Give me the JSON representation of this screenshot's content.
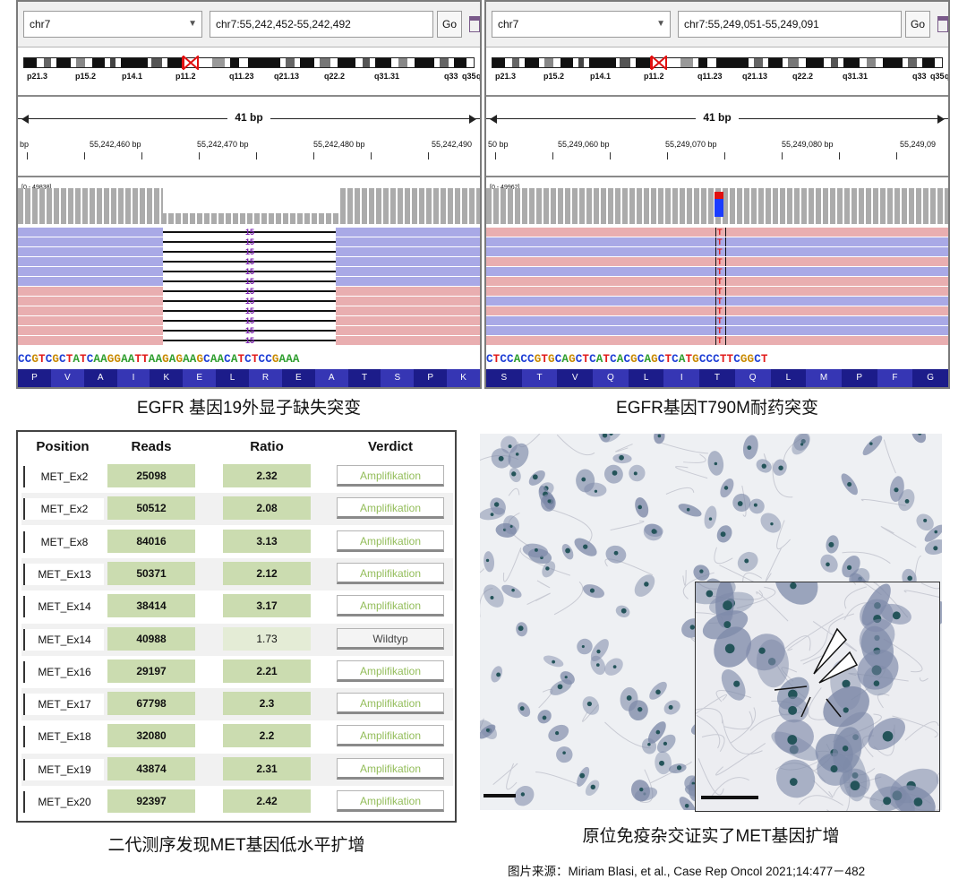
{
  "igv_left": {
    "chromosome": "chr7",
    "locus": "chr7:55,242,452-55,242,492",
    "go_label": "Go",
    "bands": [
      "p21.3",
      "p15.2",
      "p14.1",
      "p11.2",
      "q11.23",
      "q21.13",
      "q22.2",
      "q31.31",
      "q33",
      "q35",
      "q3"
    ],
    "width_label": "41 bp",
    "ticks": [
      "bp",
      "55,242,460 bp",
      "55,242,470 bp",
      "55,242,480 bp",
      "55,242,490"
    ],
    "coverage_range": "[0 - 49838]",
    "sequence": "CCGTCGCTATCAAGGAATTAAGAGAAGCAACATCTCCGAAA",
    "amino_acids": [
      "P",
      "V",
      "A",
      "I",
      "K",
      "E",
      "L",
      "R",
      "E",
      "A",
      "T",
      "S",
      "P",
      "K"
    ],
    "marker": "15",
    "caption": "EGFR 基因19外显子缺失突变"
  },
  "igv_right": {
    "chromosome": "chr7",
    "locus": "chr7:55,249,051-55,249,091",
    "go_label": "Go",
    "bands": [
      "p21.3",
      "p15.2",
      "p14.1",
      "p11.2",
      "q11.23",
      "q21.13",
      "q22.2",
      "q31.31",
      "q33",
      "q35",
      "q3"
    ],
    "width_label": "41 bp",
    "ticks": [
      "50 bp",
      "55,249,060 bp",
      "55,249,070 bp",
      "55,249,080 bp",
      "55,249,09"
    ],
    "coverage_range": "[0 - 49962]",
    "sequence": "CTCCACCGTGCAGCTCATCACGCAGCTCATGCCCTTCGGCT",
    "amino_acids": [
      "S",
      "T",
      "V",
      "Q",
      "L",
      "I",
      "T",
      "Q",
      "L",
      "M",
      "P",
      "F",
      "G"
    ],
    "marker": "T",
    "caption": "EGFR基因T790M耐药突变"
  },
  "table": {
    "headers": [
      "Position",
      "Reads",
      "Ratio",
      "Verdict"
    ],
    "rows": [
      {
        "position": "MET_Ex2",
        "reads": "25098",
        "ratio": "2.32",
        "verdict": "Amplifikation"
      },
      {
        "position": "MET_Ex2",
        "reads": "50512",
        "ratio": "2.08",
        "verdict": "Amplifikation"
      },
      {
        "position": "MET_Ex8",
        "reads": "84016",
        "ratio": "3.13",
        "verdict": "Amplifikation"
      },
      {
        "position": "MET_Ex13",
        "reads": "50371",
        "ratio": "2.12",
        "verdict": "Amplifikation"
      },
      {
        "position": "MET_Ex14",
        "reads": "38414",
        "ratio": "3.17",
        "verdict": "Amplifikation"
      },
      {
        "position": "MET_Ex14",
        "reads": "40988",
        "ratio": "1.73",
        "verdict": "Wildtyp"
      },
      {
        "position": "MET_Ex16",
        "reads": "29197",
        "ratio": "2.21",
        "verdict": "Amplifikation"
      },
      {
        "position": "MET_Ex17",
        "reads": "67798",
        "ratio": "2.3",
        "verdict": "Amplifikation"
      },
      {
        "position": "MET_Ex18",
        "reads": "32080",
        "ratio": "2.2",
        "verdict": "Amplifikation"
      },
      {
        "position": "MET_Ex19",
        "reads": "43874",
        "ratio": "2.31",
        "verdict": "Amplifikation"
      },
      {
        "position": "MET_Ex20",
        "reads": "92397",
        "ratio": "2.42",
        "verdict": "Amplifikation"
      }
    ],
    "caption": "二代测序发现MET基因低水平扩增"
  },
  "histology": {
    "caption": "原位免疫杂交证实了MET基因扩增"
  },
  "colors": {
    "read_blue": "#a9a9e6",
    "read_pink": "#e9aeb0",
    "aa_dark": "#1c1c8a",
    "aa_light": "#3636b4",
    "base_A": "#2f9e2f",
    "base_C": "#1f3fd6",
    "base_G": "#c98a00",
    "base_T": "#e11d1d",
    "verdict_green": "#93bd5a",
    "cell_nucleus": "#7d89a8",
    "fish_signal": "#24545a"
  },
  "source": "图片来源：Miriam Blasi, et al., Case Rep Oncol 2021;14:477－482"
}
